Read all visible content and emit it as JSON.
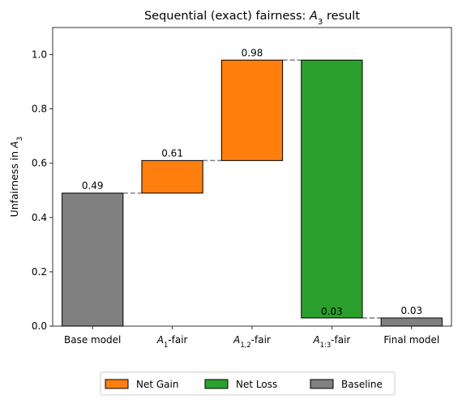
{
  "chart_data": {
    "type": "bar",
    "subtype": "waterfall",
    "title": {
      "prefix": "Sequential (exact) fairness: ",
      "math_main": "A",
      "math_sub": "3",
      "suffix": " result"
    },
    "ylabel": {
      "prefix": "Unfairness in ",
      "math_main": "A",
      "math_sub": "3"
    },
    "xlabel": "",
    "ylim": [
      0,
      1.1
    ],
    "yticks": [
      "0.0",
      "0.2",
      "0.4",
      "0.6",
      "0.8",
      "1.0"
    ],
    "ytick_values": [
      0.0,
      0.2,
      0.4,
      0.6,
      0.8,
      1.0
    ],
    "grid": false,
    "legend_position": "bottom-center",
    "categories": [
      {
        "plain": "Base model"
      },
      {
        "math_main": "A",
        "math_sub": "1",
        "suffix": "-fair"
      },
      {
        "math_main": "A",
        "math_sub": "1,2",
        "suffix": "-fair"
      },
      {
        "math_main": "A",
        "math_sub": "1:3",
        "suffix": "-fair"
      },
      {
        "plain": "Final model"
      }
    ],
    "bars": [
      {
        "base": 0.0,
        "top": 0.49,
        "kind": "baseline",
        "label": "0.49"
      },
      {
        "base": 0.49,
        "top": 0.61,
        "kind": "gain",
        "label": "0.61"
      },
      {
        "base": 0.61,
        "top": 0.98,
        "kind": "gain",
        "label": "0.98"
      },
      {
        "base": 0.03,
        "top": 0.98,
        "kind": "loss",
        "label": "0.03"
      },
      {
        "base": 0.0,
        "top": 0.03,
        "kind": "baseline",
        "label": "0.03"
      }
    ],
    "connectors": [
      0.49,
      0.61,
      0.98,
      0.03
    ],
    "legend": [
      {
        "kind": "gain",
        "label": "Net Gain"
      },
      {
        "kind": "loss",
        "label": "Net Loss"
      },
      {
        "kind": "baseline",
        "label": "Baseline"
      }
    ],
    "colors": {
      "gain": "#ff7f0e",
      "loss": "#2ca02c",
      "baseline": "#808080",
      "connector": "#808080",
      "edge": "#000000"
    }
  }
}
